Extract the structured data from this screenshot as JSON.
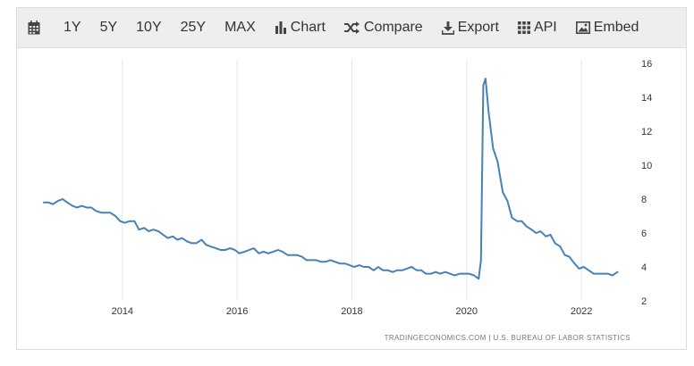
{
  "toolbar": {
    "range_buttons": [
      {
        "label": "1Y"
      },
      {
        "label": "5Y"
      },
      {
        "label": "10Y"
      },
      {
        "label": "25Y"
      },
      {
        "label": "MAX"
      }
    ],
    "actions": [
      {
        "label": "Chart",
        "icon": "bar-chart-icon"
      },
      {
        "label": "Compare",
        "icon": "shuffle-icon"
      },
      {
        "label": "Export",
        "icon": "download-icon"
      },
      {
        "label": "API",
        "icon": "grid-icon"
      },
      {
        "label": "Embed",
        "icon": "image-icon"
      }
    ]
  },
  "source_text": "TRADINGECONOMICS.COM  |  U.S. BUREAU OF LABOR STATISTICS",
  "colors": {
    "line": "#4682b4",
    "grid": "#e6e6e6",
    "toolbar_bg": "#eeeeee"
  },
  "chart_data": {
    "type": "line",
    "title": "",
    "xlabel": "",
    "ylabel": "",
    "ylim": [
      2,
      16
    ],
    "xlim": [
      2012.6,
      2022.7
    ],
    "yticks": [
      "2",
      "4",
      "6",
      "8",
      "10",
      "12",
      "14",
      "16"
    ],
    "xticks": [
      "2014",
      "2016",
      "2018",
      "2020",
      "2022"
    ],
    "y_axis_side": "right",
    "grid": "vertical",
    "series": [
      {
        "points": [
          [
            2012.63,
            7.8
          ],
          [
            2012.71,
            7.8
          ],
          [
            2012.79,
            7.7
          ],
          [
            2012.88,
            7.9
          ],
          [
            2012.96,
            8.0
          ],
          [
            2013.04,
            7.8
          ],
          [
            2013.13,
            7.6
          ],
          [
            2013.21,
            7.5
          ],
          [
            2013.29,
            7.6
          ],
          [
            2013.38,
            7.5
          ],
          [
            2013.46,
            7.5
          ],
          [
            2013.54,
            7.3
          ],
          [
            2013.63,
            7.2
          ],
          [
            2013.71,
            7.2
          ],
          [
            2013.79,
            7.2
          ],
          [
            2013.88,
            7.0
          ],
          [
            2013.96,
            6.7
          ],
          [
            2014.04,
            6.6
          ],
          [
            2014.13,
            6.7
          ],
          [
            2014.21,
            6.7
          ],
          [
            2014.29,
            6.2
          ],
          [
            2014.38,
            6.3
          ],
          [
            2014.46,
            6.1
          ],
          [
            2014.54,
            6.2
          ],
          [
            2014.63,
            6.1
          ],
          [
            2014.71,
            5.9
          ],
          [
            2014.79,
            5.7
          ],
          [
            2014.88,
            5.8
          ],
          [
            2014.96,
            5.6
          ],
          [
            2015.04,
            5.7
          ],
          [
            2015.13,
            5.5
          ],
          [
            2015.21,
            5.4
          ],
          [
            2015.29,
            5.4
          ],
          [
            2015.38,
            5.6
          ],
          [
            2015.46,
            5.3
          ],
          [
            2015.54,
            5.2
          ],
          [
            2015.63,
            5.1
          ],
          [
            2015.71,
            5.0
          ],
          [
            2015.79,
            5.0
          ],
          [
            2015.88,
            5.1
          ],
          [
            2015.96,
            5.0
          ],
          [
            2016.04,
            4.8
          ],
          [
            2016.13,
            4.9
          ],
          [
            2016.21,
            5.0
          ],
          [
            2016.29,
            5.1
          ],
          [
            2016.38,
            4.8
          ],
          [
            2016.46,
            4.9
          ],
          [
            2016.54,
            4.8
          ],
          [
            2016.63,
            4.9
          ],
          [
            2016.71,
            5.0
          ],
          [
            2016.79,
            4.9
          ],
          [
            2016.88,
            4.7
          ],
          [
            2016.96,
            4.7
          ],
          [
            2017.04,
            4.7
          ],
          [
            2017.13,
            4.6
          ],
          [
            2017.21,
            4.4
          ],
          [
            2017.29,
            4.4
          ],
          [
            2017.38,
            4.4
          ],
          [
            2017.46,
            4.3
          ],
          [
            2017.54,
            4.3
          ],
          [
            2017.63,
            4.4
          ],
          [
            2017.71,
            4.3
          ],
          [
            2017.79,
            4.2
          ],
          [
            2017.88,
            4.2
          ],
          [
            2017.96,
            4.1
          ],
          [
            2018.04,
            4.0
          ],
          [
            2018.13,
            4.1
          ],
          [
            2018.21,
            4.0
          ],
          [
            2018.29,
            4.0
          ],
          [
            2018.38,
            3.8
          ],
          [
            2018.46,
            4.0
          ],
          [
            2018.54,
            3.8
          ],
          [
            2018.63,
            3.8
          ],
          [
            2018.71,
            3.7
          ],
          [
            2018.79,
            3.8
          ],
          [
            2018.88,
            3.8
          ],
          [
            2018.96,
            3.9
          ],
          [
            2019.04,
            4.0
          ],
          [
            2019.13,
            3.8
          ],
          [
            2019.21,
            3.8
          ],
          [
            2019.29,
            3.6
          ],
          [
            2019.38,
            3.6
          ],
          [
            2019.46,
            3.7
          ],
          [
            2019.54,
            3.6
          ],
          [
            2019.63,
            3.7
          ],
          [
            2019.71,
            3.6
          ],
          [
            2019.79,
            3.5
          ],
          [
            2019.88,
            3.6
          ],
          [
            2019.96,
            3.6
          ],
          [
            2020.04,
            3.6
          ],
          [
            2020.13,
            3.5
          ],
          [
            2020.21,
            3.3
          ],
          [
            2020.25,
            4.4
          ],
          [
            2020.29,
            14.7
          ],
          [
            2020.33,
            15.1
          ],
          [
            2020.38,
            13.2
          ],
          [
            2020.46,
            11.0
          ],
          [
            2020.54,
            10.2
          ],
          [
            2020.63,
            8.4
          ],
          [
            2020.71,
            7.9
          ],
          [
            2020.79,
            6.9
          ],
          [
            2020.88,
            6.7
          ],
          [
            2020.96,
            6.7
          ],
          [
            2021.04,
            6.4
          ],
          [
            2021.13,
            6.2
          ],
          [
            2021.21,
            6.0
          ],
          [
            2021.29,
            6.1
          ],
          [
            2021.38,
            5.8
          ],
          [
            2021.46,
            5.9
          ],
          [
            2021.54,
            5.4
          ],
          [
            2021.63,
            5.2
          ],
          [
            2021.71,
            4.7
          ],
          [
            2021.79,
            4.6
          ],
          [
            2021.88,
            4.2
          ],
          [
            2021.96,
            3.9
          ],
          [
            2022.04,
            4.0
          ],
          [
            2022.13,
            3.8
          ],
          [
            2022.21,
            3.6
          ],
          [
            2022.29,
            3.6
          ],
          [
            2022.38,
            3.6
          ],
          [
            2022.46,
            3.6
          ],
          [
            2022.54,
            3.5
          ],
          [
            2022.63,
            3.7
          ]
        ]
      }
    ]
  }
}
